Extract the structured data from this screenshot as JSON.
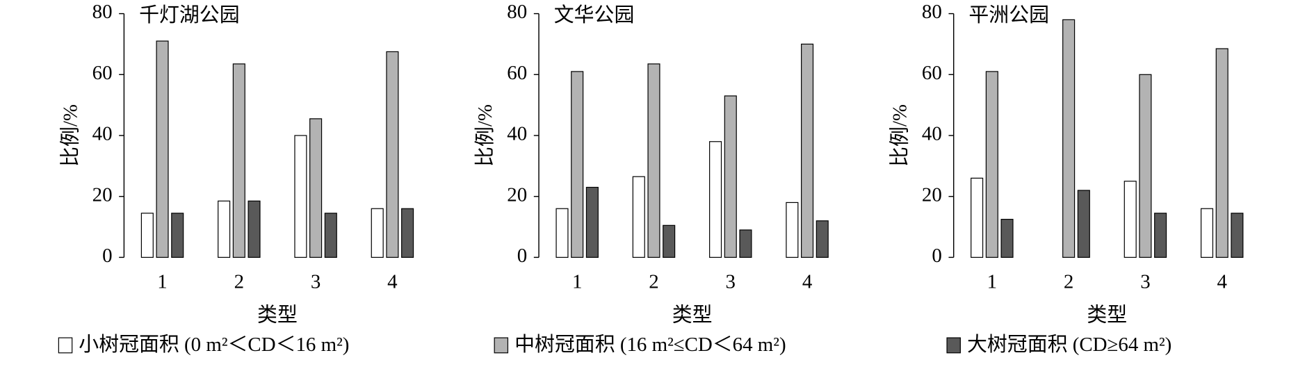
{
  "chart_data": [
    {
      "type": "bar",
      "title": "千灯湖公园",
      "x_label": "类型",
      "y_label": "比例/%",
      "categories": [
        "1",
        "2",
        "3",
        "4"
      ],
      "ylim": [
        0,
        80
      ],
      "yticks": [
        0,
        20,
        40,
        60,
        80
      ],
      "series": [
        {
          "name": "小树冠面积 (0 m²＜CD＜16 m²)",
          "color": "#ffffff",
          "values": [
            14.5,
            18.5,
            40,
            16
          ]
        },
        {
          "name": "中树冠面积 (16 m²≤CD＜64 m²)",
          "color": "#b3b3b3",
          "values": [
            71,
            63.5,
            45.5,
            67.5
          ]
        },
        {
          "name": "大树冠面积 (CD≥64 m²)",
          "color": "#595959",
          "values": [
            14.5,
            18.5,
            14.5,
            16
          ]
        }
      ]
    },
    {
      "type": "bar",
      "title": "文华公园",
      "x_label": "类型",
      "y_label": "比例/%",
      "categories": [
        "1",
        "2",
        "3",
        "4"
      ],
      "ylim": [
        0,
        80
      ],
      "yticks": [
        0,
        20,
        40,
        60,
        80
      ],
      "series": [
        {
          "color": "#ffffff",
          "values": [
            16,
            26.5,
            38,
            18
          ]
        },
        {
          "color": "#b3b3b3",
          "values": [
            61,
            63.5,
            53,
            70
          ]
        },
        {
          "color": "#595959",
          "values": [
            23,
            10.5,
            9,
            12
          ]
        }
      ]
    },
    {
      "type": "bar",
      "title": "平洲公园",
      "x_label": "类型",
      "y_label": "比例/%",
      "categories": [
        "1",
        "2",
        "3",
        "4"
      ],
      "ylim": [
        0,
        80
      ],
      "yticks": [
        0,
        20,
        40,
        60,
        80
      ],
      "series": [
        {
          "color": "#ffffff",
          "values": [
            26,
            0,
            25,
            16
          ]
        },
        {
          "color": "#b3b3b3",
          "values": [
            61,
            78,
            60,
            68.5
          ]
        },
        {
          "color": "#595959",
          "values": [
            12.5,
            22,
            14.5,
            14.5
          ]
        }
      ]
    }
  ]
}
